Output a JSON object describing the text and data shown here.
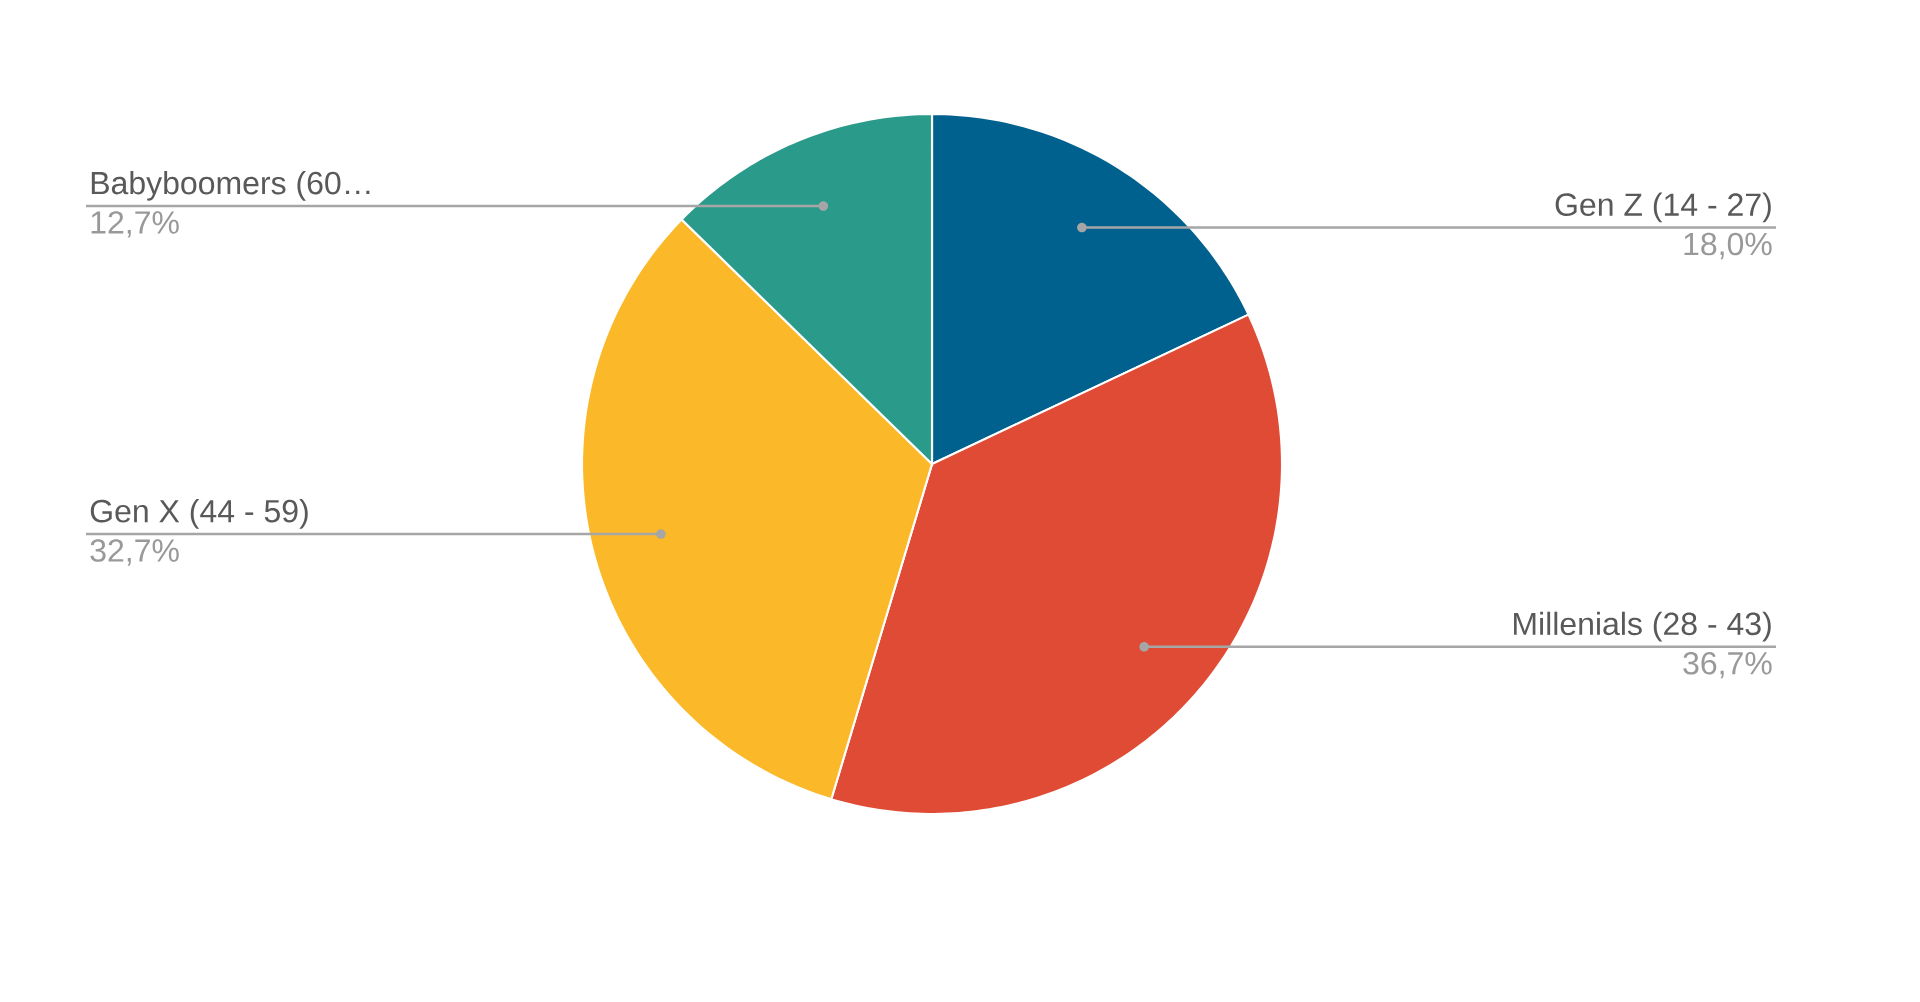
{
  "chart_data": {
    "type": "pie",
    "categories": [
      "Gen Z (14 - 27)",
      "Millenials (28 - 43)",
      "Gen X (44 - 59)",
      "Babyboomers (60…"
    ],
    "values": [
      18.0,
      36.7,
      32.7,
      12.7
    ],
    "value_labels": [
      "18,0%",
      "36,7%",
      "32,7%",
      "12,7%"
    ],
    "colors": [
      "#00618f",
      "#e04b36",
      "#fbb829",
      "#2a9a8a"
    ]
  }
}
